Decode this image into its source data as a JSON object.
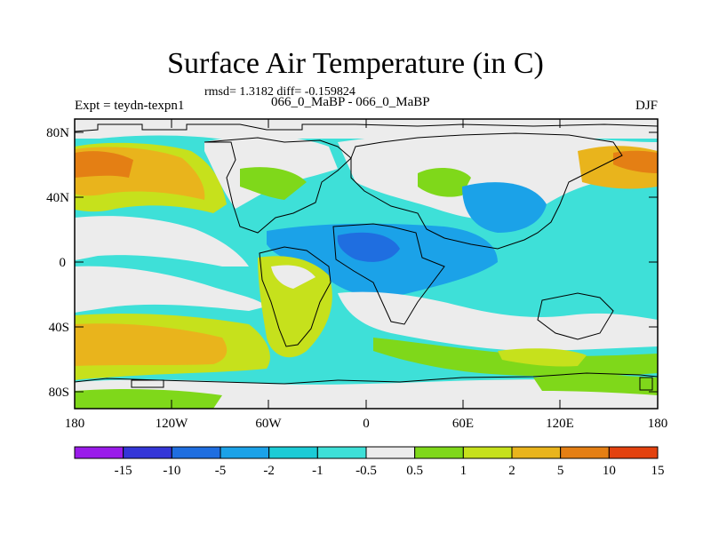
{
  "title": "Surface Air Temperature (in C)",
  "stats": "rmsd= 1.3182 diff= -0.159824",
  "experiment": "Expt = teydn-texpn1",
  "subtitle": "066_0_MaBP - 066_0_MaBP",
  "season": "DJF",
  "lat_labels": [
    "80N",
    "40N",
    "0",
    "40S",
    "80S"
  ],
  "lon_labels": [
    "180",
    "120W",
    "60W",
    "0",
    "60E",
    "120E",
    "180"
  ],
  "colorbar": {
    "colors": [
      "#9a1bea",
      "#3436d8",
      "#1f6ee0",
      "#1ba2e8",
      "#1ccbd6",
      "#3ee0d8",
      "#ececec",
      "#7fd81a",
      "#c6e11c",
      "#e9b41c",
      "#e47f14",
      "#e3420f"
    ],
    "labels": [
      "-15",
      "-10",
      "-5",
      "-2",
      "-1",
      "-0.5",
      "0.5",
      "1",
      "2",
      "5",
      "10",
      "15"
    ]
  },
  "colors": {
    "neutral": "#ececec",
    "cool_light": "#3ee0d8",
    "cool_mid": "#1ccbd6",
    "cool": "#1ba2e8",
    "cold": "#1f6ee0",
    "warm_light": "#7fd81a",
    "warm_mid": "#c6e11c",
    "warm": "#e9b41c",
    "hot": "#e47f14"
  }
}
